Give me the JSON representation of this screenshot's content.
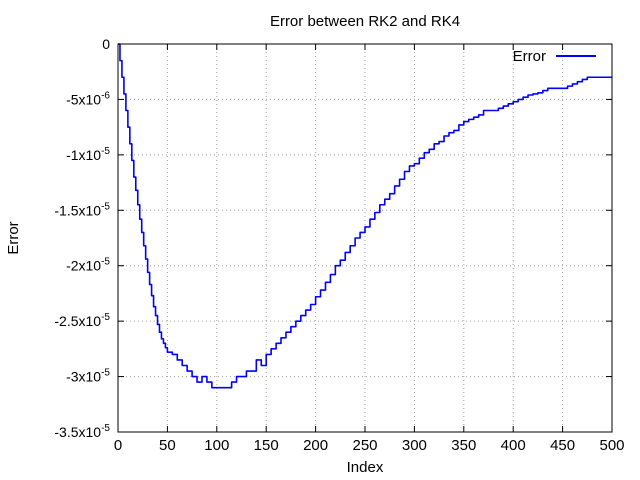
{
  "chart_data": {
    "type": "line",
    "title": "Error between RK2 and RK4",
    "xlabel": "Index",
    "ylabel": "Error",
    "xlim": [
      0,
      500
    ],
    "ylim": [
      -3.5e-05,
      0
    ],
    "grid": true,
    "legend_placement": "top-right",
    "x_ticks": [
      {
        "value": 0,
        "label": "0"
      },
      {
        "value": 50,
        "label": "50"
      },
      {
        "value": 100,
        "label": "100"
      },
      {
        "value": 150,
        "label": "150"
      },
      {
        "value": 200,
        "label": "200"
      },
      {
        "value": 250,
        "label": "250"
      },
      {
        "value": 300,
        "label": "300"
      },
      {
        "value": 350,
        "label": "350"
      },
      {
        "value": 400,
        "label": "400"
      },
      {
        "value": 450,
        "label": "450"
      },
      {
        "value": 500,
        "label": "500"
      }
    ],
    "y_ticks": [
      {
        "value": 0,
        "mantissa": "0",
        "exponent": ""
      },
      {
        "value": -5e-06,
        "mantissa": "-5x10",
        "exponent": "-6"
      },
      {
        "value": -1e-05,
        "mantissa": "-1x10",
        "exponent": "-5"
      },
      {
        "value": -1.5e-05,
        "mantissa": "-1.5x10",
        "exponent": "-5"
      },
      {
        "value": -2e-05,
        "mantissa": "-2x10",
        "exponent": "-5"
      },
      {
        "value": -2.5e-05,
        "mantissa": "-2.5x10",
        "exponent": "-5"
      },
      {
        "value": -3e-05,
        "mantissa": "-3x10",
        "exponent": "-5"
      },
      {
        "value": -3.5e-05,
        "mantissa": "-3.5x10",
        "exponent": "-5"
      }
    ],
    "series": [
      {
        "name": "Error",
        "color": "#0000ff",
        "x": [
          0,
          2,
          4,
          6,
          8,
          10,
          12,
          14,
          16,
          18,
          20,
          22,
          24,
          26,
          28,
          30,
          32,
          34,
          36,
          38,
          40,
          42,
          44,
          46,
          48,
          50,
          55,
          60,
          65,
          70,
          75,
          80,
          85,
          90,
          95,
          100,
          105,
          110,
          115,
          120,
          125,
          130,
          135,
          140,
          145,
          150,
          155,
          160,
          165,
          170,
          175,
          180,
          185,
          190,
          195,
          200,
          205,
          210,
          215,
          220,
          225,
          230,
          235,
          240,
          245,
          250,
          255,
          260,
          265,
          270,
          275,
          280,
          285,
          290,
          295,
          300,
          305,
          310,
          315,
          320,
          325,
          330,
          335,
          340,
          345,
          350,
          355,
          360,
          365,
          370,
          375,
          380,
          385,
          390,
          395,
          400,
          405,
          410,
          415,
          420,
          425,
          430,
          435,
          440,
          445,
          450,
          455,
          460,
          465,
          470,
          475,
          480,
          485,
          490,
          495,
          500
        ],
        "y": [
          0,
          -1.5e-06,
          -3e-06,
          -4.5e-06,
          -6e-06,
          -7.5e-06,
          -9e-06,
          -1.05e-05,
          -1.2e-05,
          -1.32e-05,
          -1.45e-05,
          -1.58e-05,
          -1.7e-05,
          -1.82e-05,
          -1.94e-05,
          -2.06e-05,
          -2.17e-05,
          -2.27e-05,
          -2.37e-05,
          -2.45e-05,
          -2.53e-05,
          -2.6e-05,
          -2.66e-05,
          -2.7e-05,
          -2.74e-05,
          -2.78e-05,
          -2.8e-05,
          -2.85e-05,
          -2.9e-05,
          -2.95e-05,
          -3e-05,
          -3.05e-05,
          -3e-05,
          -3.05e-05,
          -3.1e-05,
          -3.1e-05,
          -3.1e-05,
          -3.1e-05,
          -3.05e-05,
          -3e-05,
          -3e-05,
          -2.95e-05,
          -2.95e-05,
          -2.85e-05,
          -2.9e-05,
          -2.8e-05,
          -2.75e-05,
          -2.7e-05,
          -2.65e-05,
          -2.6e-05,
          -2.55e-05,
          -2.5e-05,
          -2.45e-05,
          -2.4e-05,
          -2.35e-05,
          -2.28e-05,
          -2.22e-05,
          -2.15e-05,
          -2.08e-05,
          -2e-05,
          -1.95e-05,
          -1.88e-05,
          -1.82e-05,
          -1.75e-05,
          -1.7e-05,
          -1.65e-05,
          -1.58e-05,
          -1.52e-05,
          -1.45e-05,
          -1.4e-05,
          -1.35e-05,
          -1.28e-05,
          -1.22e-05,
          -1.15e-05,
          -1.1e-05,
          -1.08e-05,
          -1.03e-05,
          -9.8e-06,
          -9.5e-06,
          -9e-06,
          -8.8e-06,
          -8.3e-06,
          -8e-06,
          -7.8e-06,
          -7.3e-06,
          -7e-06,
          -6.8e-06,
          -6.6e-06,
          -6.4e-06,
          -6e-06,
          -6e-06,
          -6e-06,
          -5.8e-06,
          -5.6e-06,
          -5.4e-06,
          -5.2e-06,
          -5e-06,
          -4.8e-06,
          -4.6e-06,
          -4.5e-06,
          -4.4e-06,
          -4.2e-06,
          -4e-06,
          -4e-06,
          -4e-06,
          -4e-06,
          -3.8e-06,
          -3.6e-06,
          -3.4e-06,
          -3.2e-06,
          -3e-06,
          -3e-06,
          -3e-06,
          -3e-06,
          -3e-06,
          -3e-06
        ]
      }
    ]
  }
}
